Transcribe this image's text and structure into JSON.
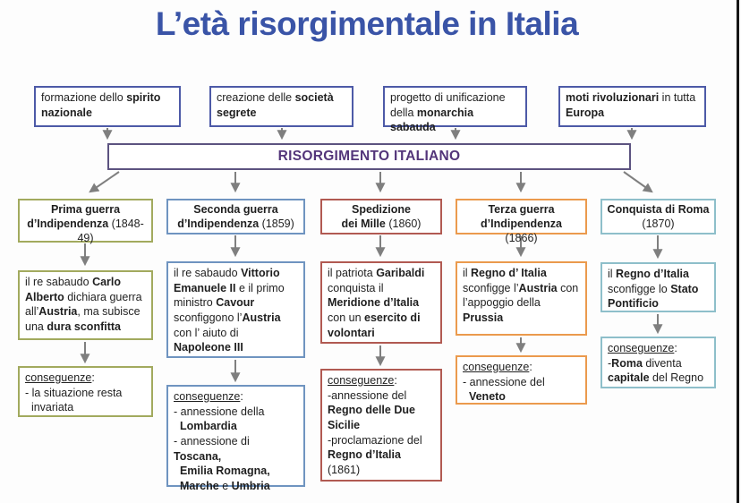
{
  "title": {
    "text": "L’età risorgimentale in Italia",
    "color": "#3a54a7"
  },
  "colors": {
    "top_box_border": "#4d5aa7",
    "center_border": "#5c5380",
    "center_text": "#53357a",
    "arrow": "#7f7f7f",
    "edge_line": "#161616"
  },
  "top_boxes": [
    {
      "runs": [
        {
          "t": "formazione dello ",
          "b": false
        },
        {
          "t": "spirito\nnazionale",
          "b": true
        }
      ]
    },
    {
      "runs": [
        {
          "t": "creazione delle ",
          "b": false
        },
        {
          "t": "società\nsegrete",
          "b": true
        }
      ]
    },
    {
      "runs": [
        {
          "t": "progetto di unificazione\ndella ",
          "b": false
        },
        {
          "t": "monarchia sabauda",
          "b": true
        }
      ]
    },
    {
      "runs": [
        {
          "t": "moti rivoluzionari",
          "b": true
        },
        {
          "t": " in tutta\n",
          "b": false
        },
        {
          "t": "Europa",
          "b": true
        }
      ]
    }
  ],
  "center": {
    "label": "RISORGIMENTO ITALIANO"
  },
  "columns": [
    {
      "id": "prima-guerra-indipendenza",
      "color": "#a2aa5e",
      "header": {
        "runs": [
          {
            "t": "Prima guerra\nd’Indipendenza ",
            "b": true
          },
          {
            "t": "(1848-\n49)",
            "b": false
          }
        ]
      },
      "description": {
        "runs": [
          {
            "t": "il re sabaudo ",
            "b": false
          },
          {
            "t": "Carlo\nAlberto",
            "b": true
          },
          {
            "t": " dichiara guerra\nall’",
            "b": false
          },
          {
            "t": "Austria",
            "b": true
          },
          {
            "t": ", ma subisce\nuna ",
            "b": false
          },
          {
            "t": "dura sconfitta",
            "b": true
          }
        ]
      },
      "consequences": {
        "runs": [
          {
            "t": "conseguenze",
            "u": true
          },
          {
            "t": ":\n- la situazione resta\n  invariata",
            "b": false
          }
        ]
      }
    },
    {
      "id": "seconda-guerra-indipendenza",
      "color": "#6f94c0",
      "header": {
        "runs": [
          {
            "t": "Seconda guerra\nd’Indipendenza ",
            "b": true
          },
          {
            "t": "(1859)",
            "b": false
          }
        ]
      },
      "description": {
        "runs": [
          {
            "t": "il re sabaudo ",
            "b": false
          },
          {
            "t": "Vittorio\nEmanuele II",
            "b": true
          },
          {
            "t": " e il primo\nministro ",
            "b": false
          },
          {
            "t": "Cavour",
            "b": true
          },
          {
            "t": "\nsconfiggono l’",
            "b": false
          },
          {
            "t": "Austria",
            "b": true
          },
          {
            "t": "\ncon l’ aiuto di\n",
            "b": false
          },
          {
            "t": "Napoleone III",
            "b": true
          }
        ]
      },
      "consequences": {
        "runs": [
          {
            "t": "conseguenze",
            "u": true
          },
          {
            "t": ":\n- annessione della\n  ",
            "b": false
          },
          {
            "t": "Lombardia",
            "b": true
          },
          {
            "t": "\n- annessione di ",
            "b": false
          },
          {
            "t": "Toscana,\n  Emilia Romagna,\n  Marche",
            "b": true
          },
          {
            "t": " e ",
            "b": false
          },
          {
            "t": "Umbria",
            "b": true
          }
        ]
      }
    },
    {
      "id": "spedizione-dei-mille",
      "color": "#b15a52",
      "header": {
        "runs": [
          {
            "t": "Spedizione\ndei Mille ",
            "b": true
          },
          {
            "t": "(1860)",
            "b": false
          }
        ]
      },
      "description": {
        "runs": [
          {
            "t": "il patriota ",
            "b": false
          },
          {
            "t": "Garibaldi",
            "b": true
          },
          {
            "t": "\nconquista il\n",
            "b": false
          },
          {
            "t": "Meridione d’Italia",
            "b": true
          },
          {
            "t": "\ncon un ",
            "b": false
          },
          {
            "t": "esercito di\nvolontari",
            "b": true
          }
        ]
      },
      "consequences": {
        "runs": [
          {
            "t": "conseguenze",
            "u": true
          },
          {
            "t": ":\n-annessione del\n",
            "b": false
          },
          {
            "t": "Regno delle Due\nSicilie",
            "b": true
          },
          {
            "t": "\n-proclamazione del\n",
            "b": false
          },
          {
            "t": "Regno d’Italia",
            "b": true
          },
          {
            "t": " (1861)",
            "b": false
          }
        ]
      }
    },
    {
      "id": "terza-guerra-indipendenza",
      "color": "#eb9a4d",
      "header": {
        "runs": [
          {
            "t": "Terza guerra\nd’Indipendenza\n",
            "b": true
          },
          {
            "t": "(1866)",
            "b": false
          }
        ]
      },
      "description": {
        "runs": [
          {
            "t": "il ",
            "b": false
          },
          {
            "t": "Regno d’ Italia",
            "b": true
          },
          {
            "t": "\nsconfigge l’",
            "b": false
          },
          {
            "t": "Austria",
            "b": true
          },
          {
            "t": " con\nl’appoggio della\n",
            "b": false
          },
          {
            "t": "Prussia",
            "b": true
          }
        ]
      },
      "consequences": {
        "runs": [
          {
            "t": "conseguenze",
            "u": true
          },
          {
            "t": ":\n- annessione del\n  ",
            "b": false
          },
          {
            "t": "Veneto",
            "b": true
          }
        ]
      }
    },
    {
      "id": "conquista-di-roma",
      "color": "#8ebfca",
      "header": {
        "runs": [
          {
            "t": "Conquista di Roma\n",
            "b": true
          },
          {
            "t": "(1870)",
            "b": false
          }
        ]
      },
      "description": {
        "runs": [
          {
            "t": "il ",
            "b": false
          },
          {
            "t": "Regno d’Italia",
            "b": true
          },
          {
            "t": "\nsconfigge lo ",
            "b": false
          },
          {
            "t": "Stato\nPontificio",
            "b": true
          }
        ]
      },
      "consequences": {
        "runs": [
          {
            "t": "conseguenze",
            "u": true
          },
          {
            "t": ":\n-",
            "b": false
          },
          {
            "t": "Roma",
            "b": true
          },
          {
            "t": " diventa\n",
            "b": false
          },
          {
            "t": "capitale",
            "b": true
          },
          {
            "t": " del Regno",
            "b": false
          }
        ]
      }
    }
  ]
}
